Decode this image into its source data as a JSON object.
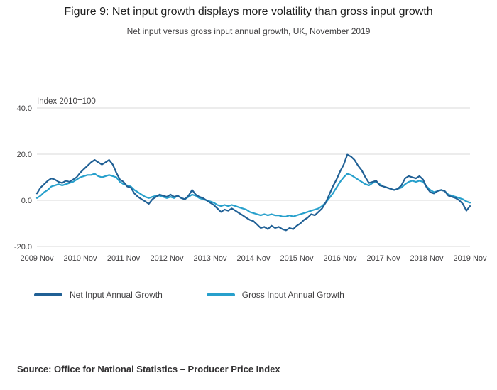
{
  "figure": {
    "title": "Figure 9: Net input growth displays more volatility than gross input growth",
    "subtitle": "Net input versus gross input annual growth, UK, November 2019",
    "source": "Source: Office for National Statistics – Producer Price Index"
  },
  "chart_data": {
    "type": "line",
    "title": "Figure 9: Net input growth displays more volatility than gross input growth",
    "subtitle": "Net input versus gross input annual growth, UK, November 2019",
    "unit_label": "Index 2010=100",
    "frequency": "monthly",
    "x_range": [
      "2009 Nov",
      "2019 Nov"
    ],
    "x_tick_labels": [
      "2009 Nov",
      "2010 Nov",
      "2011 Nov",
      "2012 Nov",
      "2013 Nov",
      "2014 Nov",
      "2015 Nov",
      "2016 Nov",
      "2017 Nov",
      "2018 Nov",
      "2019 Nov"
    ],
    "y_ticks": [
      40,
      20,
      0,
      -20
    ],
    "y_tick_labels": [
      "40.0",
      "20.0",
      "0.0",
      "-20.0"
    ],
    "ylim": [
      -20,
      40
    ],
    "grid": "horizontal",
    "legend_position": "bottom",
    "colors": {
      "grid": "#d9d9d9",
      "axis_text": "#414042"
    },
    "series": [
      {
        "name": "Net Input Annual Growth",
        "color": "#206095",
        "values": [
          3.0,
          5.5,
          7.0,
          8.5,
          9.5,
          9.0,
          8.0,
          7.5,
          8.5,
          8.0,
          9.0,
          10.0,
          12.0,
          13.5,
          15.0,
          16.5,
          17.5,
          16.5,
          15.5,
          16.5,
          17.5,
          15.5,
          12.0,
          9.0,
          8.0,
          6.0,
          5.5,
          3.0,
          1.5,
          0.5,
          -0.5,
          -1.5,
          0.5,
          1.5,
          2.5,
          2.0,
          1.5,
          2.5,
          1.5,
          2.0,
          1.0,
          0.5,
          2.0,
          4.5,
          2.5,
          1.5,
          1.0,
          0.0,
          -1.0,
          -2.0,
          -3.5,
          -5.0,
          -4.0,
          -4.5,
          -3.5,
          -4.5,
          -5.5,
          -6.5,
          -7.5,
          -8.5,
          -9.0,
          -10.5,
          -12.0,
          -11.5,
          -12.5,
          -11.0,
          -12.0,
          -11.5,
          -12.5,
          -13.0,
          -12.0,
          -12.5,
          -11.0,
          -10.0,
          -8.5,
          -7.5,
          -6.0,
          -6.5,
          -5.0,
          -3.5,
          -1.0,
          2.5,
          6.0,
          9.0,
          12.5,
          15.5,
          19.8,
          19.0,
          17.5,
          15.0,
          13.0,
          10.0,
          7.5,
          8.0,
          8.5,
          6.5,
          6.0,
          5.5,
          5.0,
          4.5,
          5.0,
          6.5,
          9.5,
          10.5,
          10.0,
          9.5,
          10.5,
          9.0,
          5.5,
          3.5,
          3.0,
          4.0,
          4.5,
          4.0,
          2.0,
          1.5,
          1.0,
          0.0,
          -1.5,
          -4.5,
          -2.5
        ]
      },
      {
        "name": "Gross Input Annual Growth",
        "color": "#27a0cc",
        "values": [
          1.0,
          2.0,
          3.5,
          4.5,
          6.0,
          6.5,
          7.0,
          6.5,
          7.0,
          7.5,
          8.0,
          9.0,
          10.0,
          10.5,
          11.0,
          11.0,
          11.5,
          10.5,
          10.0,
          10.5,
          11.0,
          10.5,
          10.0,
          8.0,
          7.0,
          6.5,
          6.0,
          4.5,
          3.5,
          2.5,
          1.5,
          1.0,
          1.5,
          2.0,
          2.0,
          1.5,
          1.0,
          1.5,
          1.0,
          2.0,
          1.0,
          0.5,
          1.5,
          2.5,
          2.0,
          1.0,
          0.5,
          0.0,
          -0.5,
          -1.0,
          -2.0,
          -2.5,
          -2.0,
          -2.5,
          -2.0,
          -2.5,
          -3.0,
          -3.5,
          -4.0,
          -5.0,
          -5.5,
          -6.0,
          -6.5,
          -6.0,
          -6.5,
          -6.0,
          -6.5,
          -6.5,
          -7.0,
          -7.0,
          -6.5,
          -7.0,
          -6.5,
          -6.0,
          -5.5,
          -5.0,
          -4.5,
          -4.0,
          -3.5,
          -2.5,
          -1.0,
          1.0,
          3.0,
          5.5,
          8.0,
          10.0,
          11.5,
          11.0,
          10.0,
          9.0,
          8.0,
          7.0,
          6.5,
          7.5,
          8.0,
          7.0,
          6.0,
          5.5,
          5.0,
          4.5,
          5.0,
          5.5,
          7.0,
          8.0,
          8.5,
          8.0,
          8.5,
          8.0,
          6.0,
          4.5,
          3.5,
          4.0,
          4.5,
          4.0,
          2.5,
          2.0,
          1.5,
          1.0,
          0.5,
          -0.5,
          -1.0
        ]
      }
    ]
  }
}
